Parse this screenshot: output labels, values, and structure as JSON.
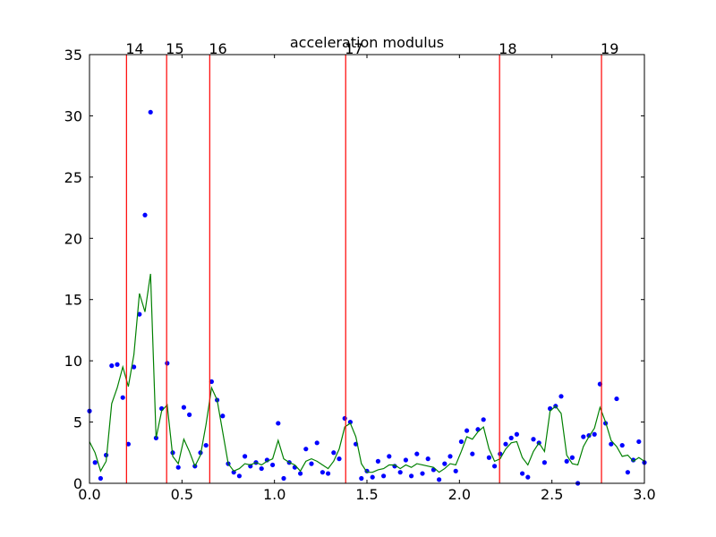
{
  "chart_data": {
    "type": "line",
    "title": "acceleration modulus",
    "x": [
      0,
      0.03,
      0.06,
      0.09,
      0.12,
      0.15,
      0.18,
      0.21,
      0.24,
      0.27,
      0.3,
      0.33,
      0.36,
      0.39,
      0.42,
      0.45,
      0.48,
      0.51,
      0.54,
      0.57,
      0.6,
      0.63,
      0.66,
      0.69,
      0.72,
      0.75,
      0.78,
      0.81,
      0.84,
      0.87,
      0.9,
      0.93,
      0.96,
      0.99,
      1.02,
      1.05,
      1.08,
      1.11,
      1.14,
      1.17,
      1.2,
      1.23,
      1.26,
      1.29,
      1.32,
      1.35,
      1.38,
      1.41,
      1.44,
      1.47,
      1.5,
      1.53,
      1.56,
      1.59,
      1.62,
      1.65,
      1.68,
      1.71,
      1.74,
      1.77,
      1.8,
      1.83,
      1.86,
      1.89,
      1.92,
      1.95,
      1.98,
      2.01,
      2.04,
      2.07,
      2.1,
      2.13,
      2.16,
      2.19,
      2.22,
      2.25,
      2.28,
      2.31,
      2.34,
      2.37,
      2.4,
      2.43,
      2.46,
      2.49,
      2.52,
      2.55,
      2.58,
      2.61,
      2.64,
      2.67,
      2.7,
      2.73,
      2.76,
      2.79,
      2.82,
      2.85,
      2.88,
      2.91,
      2.94,
      2.97,
      3.0
    ],
    "series": [
      {
        "mode": "markers",
        "color": "#0000ff",
        "values": [
          5.9,
          1.7,
          0.4,
          2.3,
          9.6,
          9.7,
          7.0,
          3.2,
          9.5,
          13.8,
          21.9,
          30.3,
          3.7,
          6.1,
          9.8,
          2.5,
          1.3,
          6.2,
          5.6,
          1.4,
          2.5,
          3.1,
          8.3,
          6.8,
          5.5,
          1.6,
          0.9,
          0.6,
          2.2,
          1.4,
          1.7,
          1.2,
          1.9,
          1.5,
          4.9,
          0.4,
          1.7,
          1.3,
          0.8,
          2.8,
          1.6,
          3.3,
          0.9,
          0.8,
          2.5,
          2.0,
          5.3,
          5.0,
          3.2,
          0.4,
          1.0,
          0.5,
          1.8,
          0.6,
          2.2,
          1.4,
          0.9,
          1.9,
          0.6,
          2.4,
          0.8,
          2.0,
          1.1,
          0.3,
          1.6,
          2.2,
          1.0,
          3.4,
          4.3,
          2.4,
          4.4,
          5.2,
          2.1,
          1.4,
          2.4,
          3.2,
          3.7,
          4.0,
          0.8,
          0.5,
          3.6,
          3.3,
          1.7,
          6.1,
          6.3,
          7.1,
          1.8,
          2.1,
          0.0,
          3.8,
          3.9,
          4.0,
          8.1,
          4.9,
          3.2,
          6.9,
          3.1,
          0.9,
          1.9,
          3.4,
          1.7
        ]
      },
      {
        "mode": "line",
        "color": "#008000",
        "values": [
          3.4,
          2.5,
          1.0,
          1.8,
          6.5,
          7.8,
          9.5,
          7.9,
          10.5,
          15.5,
          14.0,
          17.1,
          3.7,
          5.9,
          6.4,
          2.2,
          1.6,
          3.6,
          2.6,
          1.4,
          2.3,
          4.8,
          7.8,
          6.8,
          4.2,
          1.6,
          1.0,
          1.2,
          1.6,
          1.5,
          1.7,
          1.5,
          1.8,
          2.0,
          3.5,
          2.0,
          1.7,
          1.5,
          1.0,
          1.8,
          2.0,
          1.8,
          1.5,
          1.2,
          1.8,
          2.8,
          4.6,
          4.9,
          3.8,
          1.6,
          0.9,
          0.9,
          1.1,
          1.2,
          1.5,
          1.5,
          1.2,
          1.5,
          1.3,
          1.6,
          1.5,
          1.4,
          1.3,
          0.9,
          1.2,
          1.6,
          1.5,
          2.6,
          3.8,
          3.6,
          4.2,
          4.6,
          2.8,
          1.8,
          2.0,
          2.8,
          3.3,
          3.4,
          2.1,
          1.5,
          2.6,
          3.3,
          2.6,
          5.9,
          6.3,
          5.7,
          2.3,
          1.6,
          1.5,
          3.0,
          3.8,
          4.5,
          6.2,
          5.0,
          3.5,
          3.0,
          2.2,
          2.3,
          1.8,
          2.1,
          1.8
        ]
      }
    ],
    "vlines": [
      {
        "x": 0.2,
        "label": "14",
        "color": "#ff0000"
      },
      {
        "x": 0.417,
        "label": "15",
        "color": "#ff0000"
      },
      {
        "x": 0.65,
        "label": "16",
        "color": "#ff0000"
      },
      {
        "x": 1.385,
        "label": "17",
        "color": "#ff0000"
      },
      {
        "x": 2.217,
        "label": "18",
        "color": "#ff0000"
      },
      {
        "x": 2.768,
        "label": "19",
        "color": "#ff0000"
      }
    ],
    "xlim": [
      0,
      3
    ],
    "ylim": [
      0,
      35
    ],
    "xticks": [
      {
        "value": 0,
        "label": "0.0"
      },
      0.5,
      {
        "value": 1,
        "label": "1.0"
      },
      1.5,
      {
        "value": 2,
        "label": "2.0"
      },
      2.5,
      {
        "value": 3,
        "label": "3.0"
      }
    ],
    "yticks": [
      0,
      5,
      10,
      15,
      20,
      25,
      30,
      35
    ],
    "grid": false
  }
}
